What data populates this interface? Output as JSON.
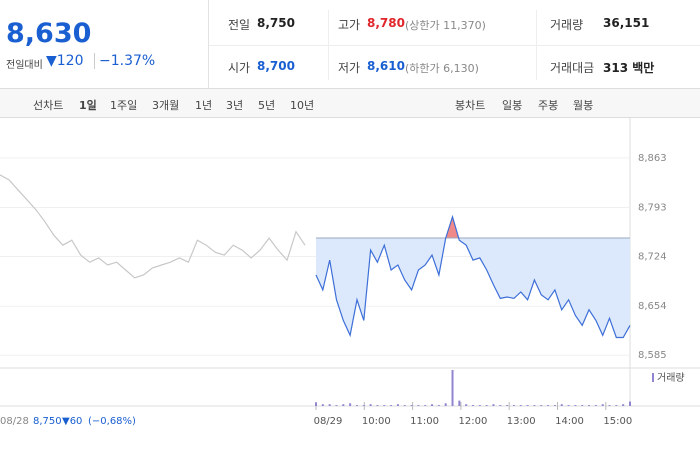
{
  "quote": {
    "price": "8,630",
    "change_label": "전일대비",
    "change": "▼120",
    "change_pct": "−1.37%"
  },
  "stats": [
    {
      "label": "전일",
      "value": "8,750"
    },
    {
      "label": "고가",
      "value": "8,780",
      "note": "(상한가 11,370)"
    },
    {
      "label": "거래량",
      "value": "36,151"
    },
    {
      "label": "시가",
      "value": "8,700"
    },
    {
      "label": "저가",
      "value": "8,610",
      "note": "(하한가 6,130)"
    },
    {
      "label": "거래대금",
      "value": "313 백만"
    }
  ],
  "tabs": {
    "line_label": "선차트",
    "line_periods": [
      "1일",
      "1주일",
      "3개월",
      "1년",
      "3년",
      "5년",
      "10년"
    ],
    "candle_label": "봉차트",
    "candle_periods": [
      "일봉",
      "주봉",
      "월봉"
    ]
  },
  "chart_data": {
    "type": "line",
    "ylim": [
      8567,
      8905
    ],
    "yticks": [
      {
        "value": 8863,
        "label": "8,863"
      },
      {
        "value": 8793,
        "label": "8,793"
      },
      {
        "value": 8724,
        "label": "8,724"
      },
      {
        "value": 8654,
        "label": "8,654"
      },
      {
        "value": 8585,
        "label": "8,585"
      }
    ],
    "baseline": 8750,
    "x_labels": [
      "08/29",
      "10:00",
      "11:00",
      "12:00",
      "13:00",
      "14:00",
      "15:00"
    ],
    "series": [
      {
        "color": "#c8c8c8",
        "values": [
          8839,
          8832,
          8818,
          8804,
          8790,
          8773,
          8754,
          8740,
          8747,
          8726,
          8716,
          8722,
          8712,
          8716,
          8705,
          8694,
          8698,
          8708,
          8712,
          8716,
          8722,
          8716,
          8747,
          8740,
          8730,
          8726,
          8740,
          8733,
          8722,
          8733,
          8750,
          8733,
          8719,
          8759,
          8740
        ]
      },
      {
        "color": "#3d6fd8",
        "values": [
          8698,
          8677,
          8719,
          8663,
          8634,
          8613,
          8663,
          8634,
          8733,
          8716,
          8740,
          8705,
          8712,
          8691,
          8677,
          8705,
          8712,
          8726,
          8698,
          8750,
          8780,
          8747,
          8740,
          8719,
          8722,
          8705,
          8684,
          8665,
          8667,
          8665,
          8674,
          8663,
          8691,
          8670,
          8663,
          8677,
          8649,
          8663,
          8641,
          8627,
          8649,
          8634,
          8613,
          8637,
          8610,
          8610,
          8627
        ]
      }
    ],
    "volume": {
      "name": "거래량",
      "color": "#9085d0",
      "values": [
        4,
        2,
        2,
        1,
        2,
        3,
        1,
        1,
        2,
        1,
        1,
        1,
        2,
        1,
        1,
        1,
        1,
        2,
        1,
        3,
        40,
        6,
        2,
        1,
        1,
        1,
        2,
        1,
        1,
        1,
        1,
        1,
        1,
        1,
        1,
        1,
        2,
        1,
        1,
        1,
        1,
        1,
        2,
        1,
        1,
        2,
        5
      ]
    },
    "prev_day": {
      "date": "08/28",
      "close": "8,750",
      "change": "▼60",
      "change_pct": "(−0,68%)"
    }
  }
}
